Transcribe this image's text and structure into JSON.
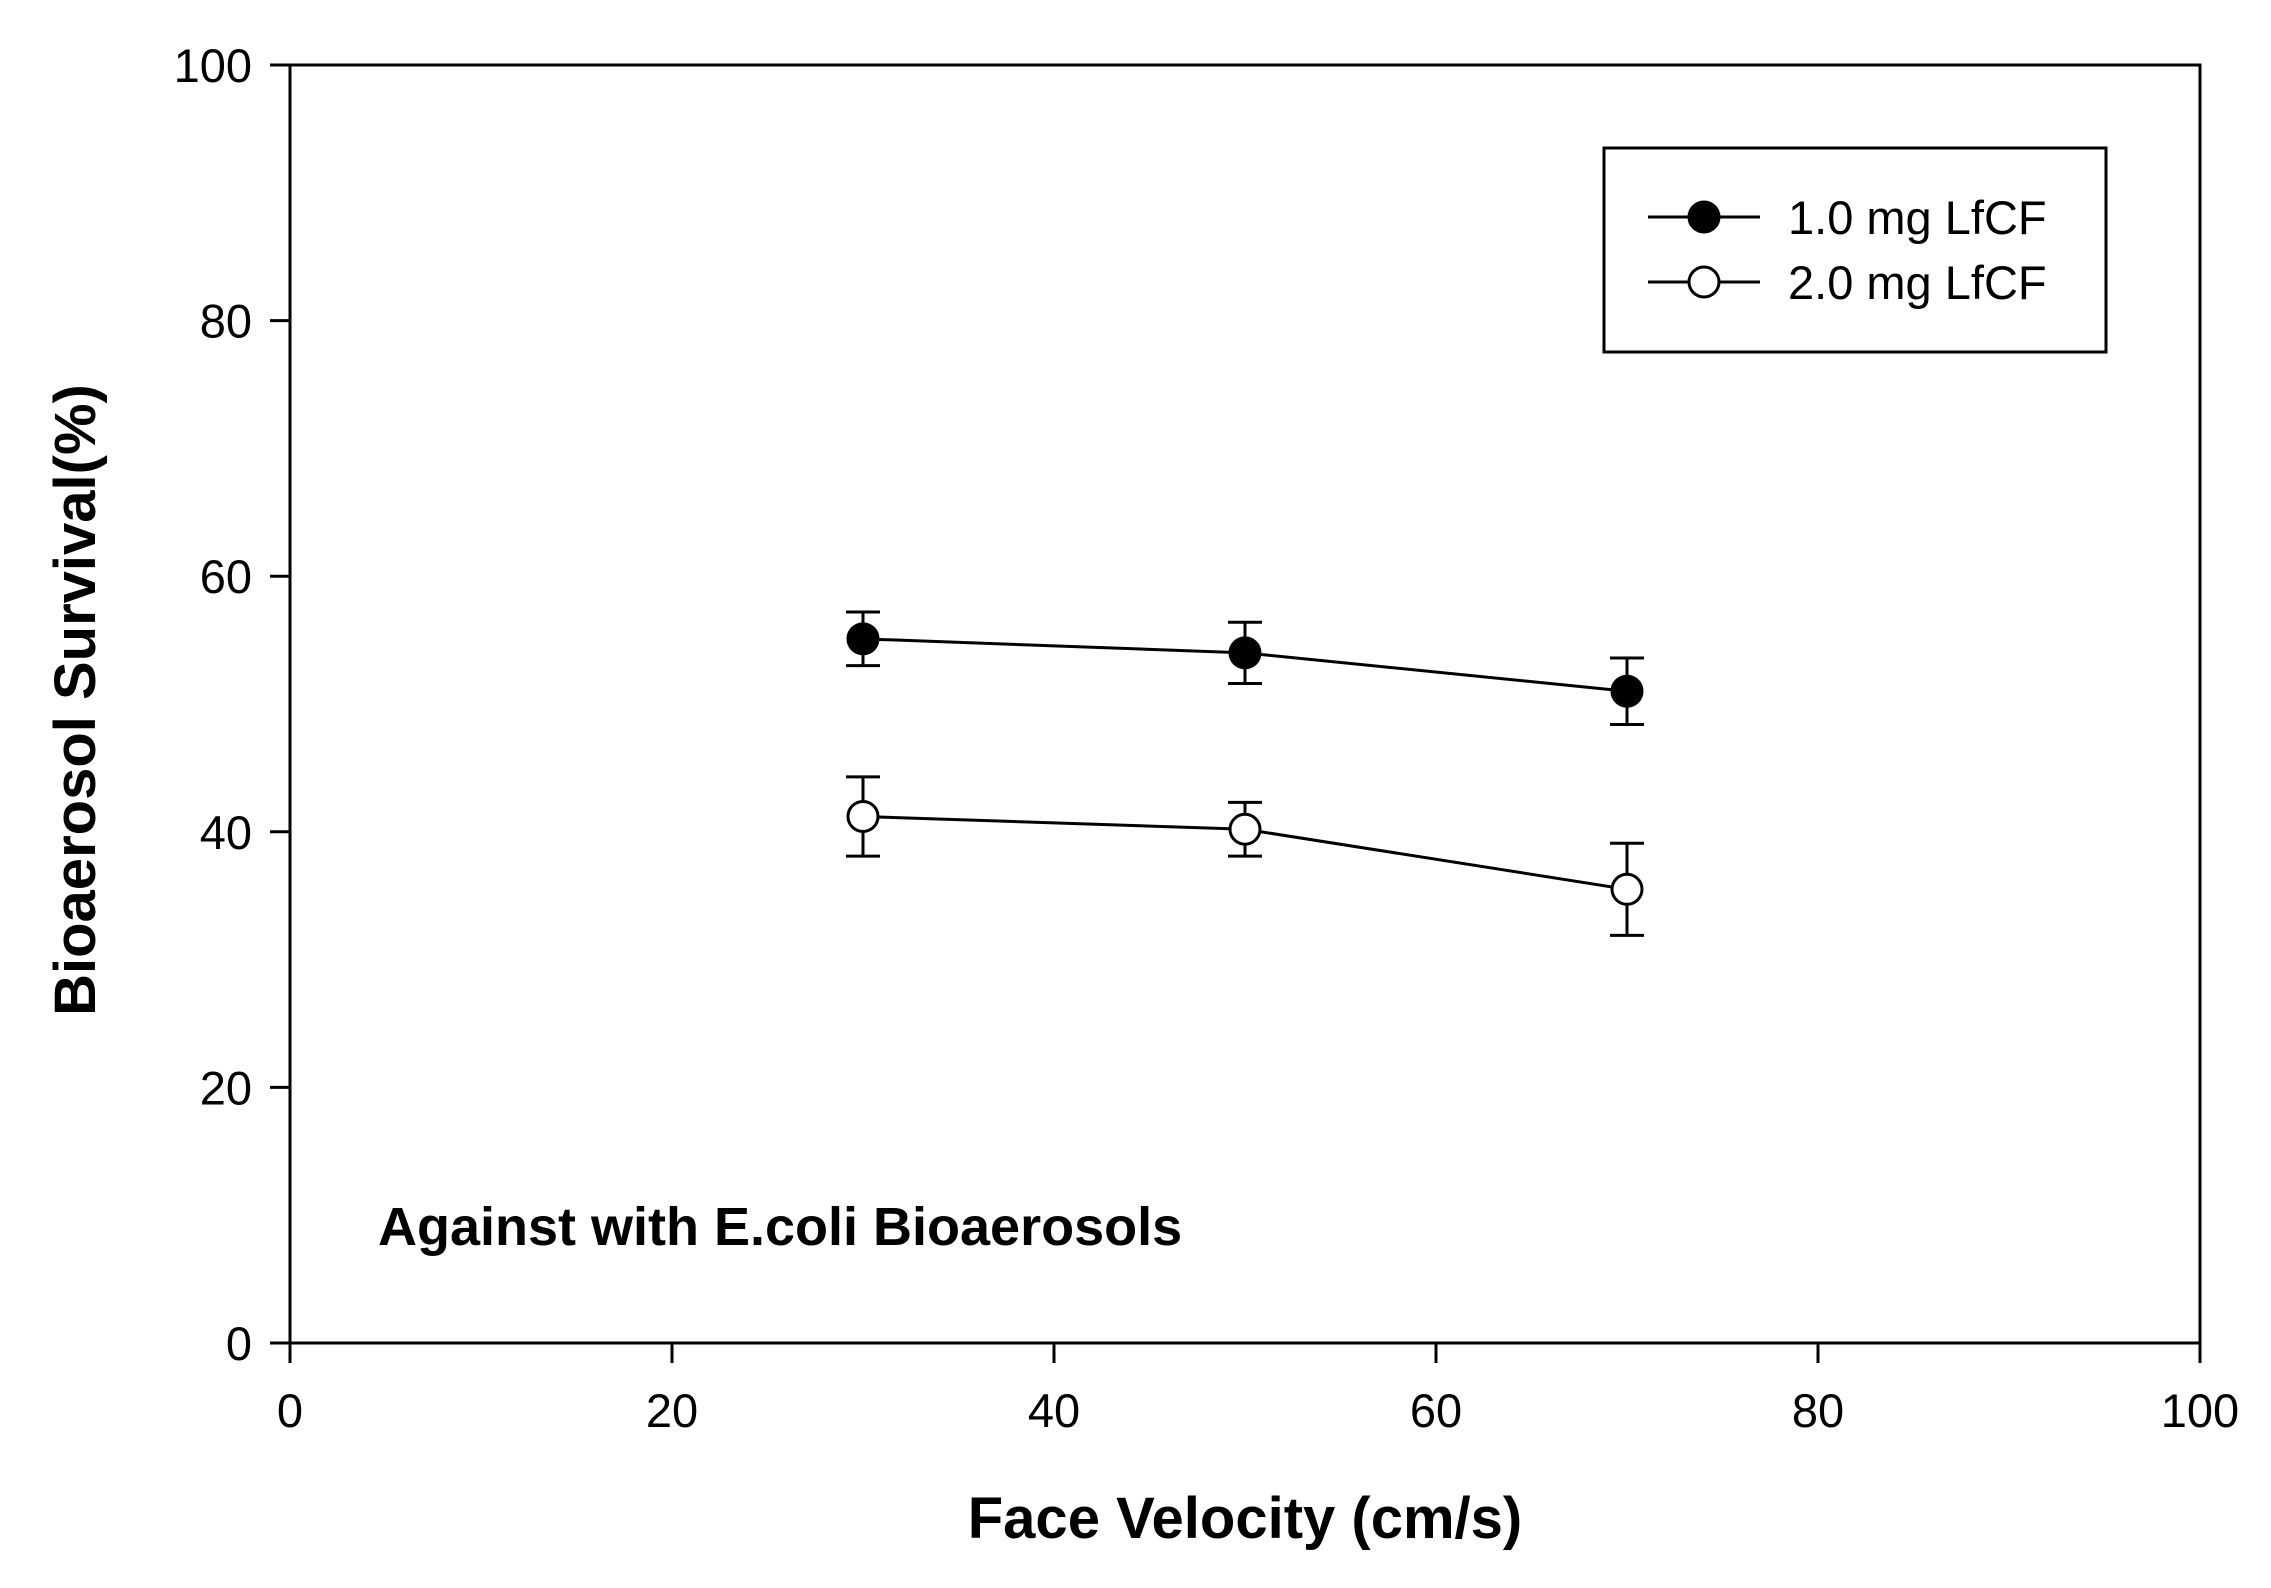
{
  "chart_data": {
    "type": "line",
    "xlabel": "Face Velocity (cm/s)",
    "ylabel": "Bioaerosol Survival(%)",
    "xlim": [
      0,
      100
    ],
    "ylim": [
      0,
      100
    ],
    "x_ticks": [
      0,
      20,
      40,
      60,
      80,
      100
    ],
    "y_ticks": [
      0,
      20,
      40,
      60,
      80,
      100
    ],
    "grid": false,
    "legend_position": "top-right",
    "annotation": "Against with E.coli Bioaerosols",
    "x": [
      30,
      50,
      70
    ],
    "series": [
      {
        "name": "1.0 mg LfCF",
        "marker": "filled-circle",
        "color": "#000000",
        "values": [
          55.1,
          54.0,
          51.0
        ],
        "error": [
          2.1,
          2.4,
          2.6
        ]
      },
      {
        "name": "2.0 mg LfCF",
        "marker": "open-circle",
        "color": "#000000",
        "values": [
          41.2,
          40.2,
          35.5
        ],
        "error": [
          3.1,
          2.1,
          3.6
        ]
      }
    ]
  }
}
